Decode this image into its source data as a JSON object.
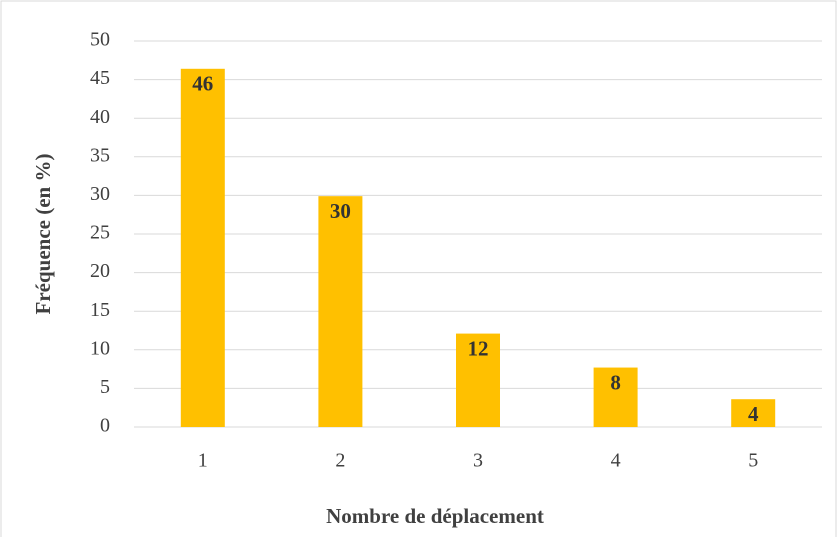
{
  "chart_data": {
    "type": "bar",
    "xlabel": "Nombre de déplacement",
    "ylabel": "Fréquence (en %)",
    "categories": [
      "1",
      "2",
      "3",
      "4",
      "5"
    ],
    "values": [
      46.4,
      29.9,
      12.1,
      7.7,
      3.6
    ],
    "value_labels": [
      "46",
      "30",
      "12",
      "8",
      "4"
    ],
    "color": "#ffc000",
    "ylim": [
      0,
      50
    ],
    "yticks": [
      0,
      5,
      10,
      15,
      20,
      25,
      30,
      35,
      40,
      45,
      50
    ],
    "grid": true
  }
}
